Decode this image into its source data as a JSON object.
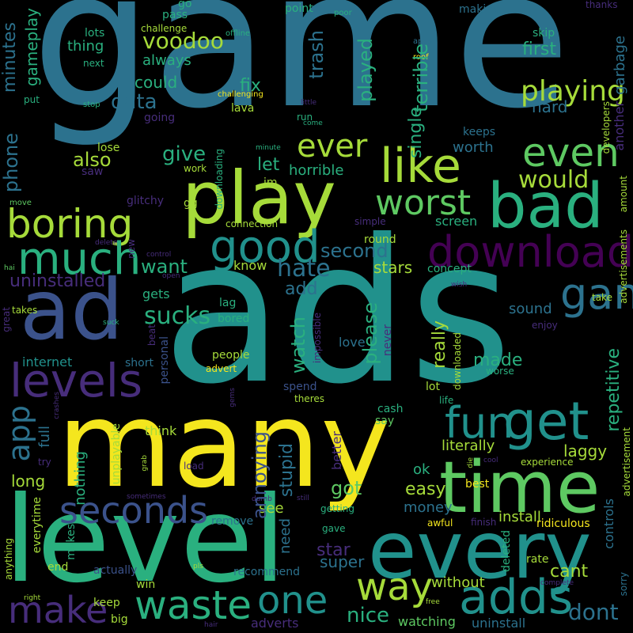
{
  "palette": {
    "background": "#000000",
    "yellow": "#f4e61e",
    "lime": "#a6db3a",
    "green": "#5ec962",
    "seagreen": "#2ab07f",
    "teal": "#21918c",
    "cyan_blue": "#2c728e",
    "blue": "#3b528b",
    "indigo": "#472d7b",
    "purple": "#440154"
  },
  "words": {
    "game": "game",
    "ads": "ads",
    "level": "level",
    "many": "many",
    "every": "every",
    "time": "time",
    "play": "play",
    "bad": "bad",
    "ad": "ad",
    "download": "download",
    "boring": "boring",
    "good": "good",
    "much": "much",
    "like": "like",
    "worst": "worst",
    "levels": "levels",
    "fun": "fun",
    "get": "get",
    "games": "games",
    "seconds": "seconds",
    "adds": "adds",
    "waste": "waste",
    "make": "make",
    "way": "way",
    "one": "one",
    "even": "even",
    "ever": "ever",
    "app": "app",
    "playing": "playing",
    "voodoo": "voodoo",
    "phone": "phone",
    "minutes": "minutes",
    "gameplay": "gameplay",
    "trash": "trash",
    "played": "played",
    "data": "data",
    "terrible": "terrible",
    "hate": "hate",
    "second": "second",
    "stars": "stars",
    "uninstalled": "uninstalled",
    "want": "want",
    "watch": "watch",
    "sucks": "sucks",
    "really": "really",
    "please": "please",
    "repetitive": "repetitive",
    "annoying": "annoying",
    "stupid": "stupid",
    "laggy": "laggy",
    "literally": "literally",
    "easy": "easy",
    "got": "got",
    "dont": "dont",
    "star": "star",
    "nice": "nice",
    "cant": "cant",
    "would": "would",
    "also": "also",
    "give": "give",
    "worth": "worth",
    "single": "single",
    "first": "first",
    "hard": "hard",
    "fix": "fix",
    "could": "could",
    "always": "always",
    "thing": "thing",
    "lots": "lots",
    "pass": "pass",
    "go": "go",
    "point": "point",
    "poor": "poor",
    "making": "making",
    "thanks": "thanks",
    "skip": "skip",
    "garbage": "garbage",
    "next": "next",
    "challenge": "challenge",
    "offline": "offline",
    "apps": "apps",
    "roof": "roof",
    "put": "put",
    "stop": "stop",
    "going": "going",
    "challenging": "challenging",
    "lava": "lava",
    "run": "run",
    "come": "come",
    "little": "little",
    "keeps": "keeps",
    "lose": "lose",
    "saw": "saw",
    "work": "work",
    "downloading": "downloading",
    "minute": "minute",
    "developers": "developers",
    "another": "another",
    "amount": "amount",
    "let": "let",
    "horrible": "horrible",
    "im": "im",
    "glitchy": "glitchy",
    "move": "move",
    "gg": "gg",
    "connection": "connection",
    "screen": "screen",
    "simple": "simple",
    "delete": "delete",
    "round": "round",
    "new": "new",
    "control": "control",
    "concept": "concept",
    "know": "know",
    "hai": "hai",
    "open": "open",
    "wish": "wish",
    "advertisements": "advertisements",
    "add": "add",
    "gets": "gets",
    "lag": "lag",
    "bored": "bored",
    "take": "take",
    "sound": "sound",
    "enjoy": "enjoy",
    "great": "great",
    "takes": "takes",
    "suck": "suck",
    "beat": "beat",
    "personal": "personal",
    "people": "people",
    "impossible": "impossible",
    "never": "never",
    "love": "love",
    "downloaded": "downloaded",
    "made": "made",
    "worse": "worse",
    "internet": "internet",
    "short": "short",
    "advert": "advert",
    "gems": "gems",
    "spend": "spend",
    "lot": "lot",
    "life": "life",
    "crashes": "crashes",
    "theres": "theres",
    "full": "full",
    "cash": "cash",
    "say": "say",
    "think": "think",
    "unplayable": "unplayable",
    "try": "try",
    "grab": "grab",
    "load": "load",
    "nothing": "nothing",
    "long": "long",
    "better": "better",
    "ok": "ok",
    "die": "die",
    "cool": "cool",
    "experience": "experience",
    "advertisement": "advertisement",
    "best": "best",
    "sometimes": "sometimes",
    "dumb": "dumb",
    "still": "still",
    "getting": "getting",
    "controls": "controls",
    "money": "money",
    "anything": "anything",
    "everytime": "everytime",
    "makes": "makes",
    "remove": "remove",
    "see": "see",
    "need": "need",
    "gave": "gave",
    "awful": "awful",
    "finish": "finish",
    "install": "install",
    "ridiculous": "ridiculous",
    "deleted": "deleted",
    "end": "end",
    "actually": "actually",
    "recommend": "recommend",
    "super": "super",
    "without": "without",
    "rate": "rate",
    "sorry": "sorry",
    "win": "win",
    "pls": "pls",
    "complete": "complete",
    "right": "right",
    "keep": "keep",
    "big": "big",
    "adverts": "adverts",
    "watching": "watching",
    "free": "free",
    "uninstall": "uninstall",
    "hair": "hair"
  }
}
